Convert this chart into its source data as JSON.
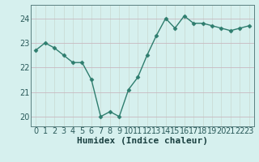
{
  "x": [
    0,
    1,
    2,
    3,
    4,
    5,
    6,
    7,
    8,
    9,
    10,
    11,
    12,
    13,
    14,
    15,
    16,
    17,
    18,
    19,
    20,
    21,
    22,
    23
  ],
  "y": [
    22.7,
    23.0,
    22.8,
    22.5,
    22.2,
    22.2,
    21.5,
    20.0,
    20.2,
    20.0,
    21.1,
    21.6,
    22.5,
    23.3,
    24.0,
    23.6,
    24.1,
    23.8,
    23.8,
    23.7,
    23.6,
    23.5,
    23.6,
    23.7
  ],
  "line_color": "#2e7d6e",
  "marker": "D",
  "marker_size": 2.5,
  "bg_color": "#d6f0ee",
  "grid_color_v": "#c8d8d0",
  "grid_color_h": "#c8b8c0",
  "xlabel": "Humidex (Indice chaleur)",
  "ylim": [
    19.6,
    24.55
  ],
  "xlim": [
    -0.5,
    23.5
  ],
  "yticks": [
    20,
    21,
    22,
    23,
    24
  ],
  "xticks": [
    0,
    1,
    2,
    3,
    4,
    5,
    6,
    7,
    8,
    9,
    10,
    11,
    12,
    13,
    14,
    15,
    16,
    17,
    18,
    19,
    20,
    21,
    22,
    23
  ],
  "xlabel_fontsize": 8,
  "tick_fontsize": 7,
  "linewidth": 1.0,
  "spine_color": "#5a8080",
  "tick_color": "#2a5a5a",
  "label_color": "#1a4040"
}
